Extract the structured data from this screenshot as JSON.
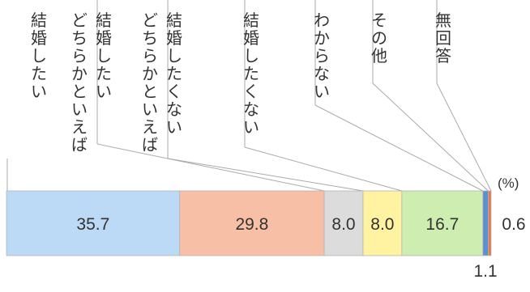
{
  "chart_data": {
    "type": "stacked-bar-100",
    "unit": "(%)",
    "categories": [
      "結婚したい",
      "どちらかといえば結婚したい",
      "どちらかといえば結婚したくない",
      "結婚したくない",
      "わからない",
      "その他",
      "無回答"
    ],
    "label_lines": [
      [
        "結婚したい"
      ],
      [
        "どちらかといえば",
        "結婚したい"
      ],
      [
        "どちらかといえば",
        "結婚したくない"
      ],
      [
        "結婚したくない"
      ],
      [
        "わからない"
      ],
      [
        "その他"
      ],
      [
        "無回答"
      ]
    ],
    "values": [
      35.7,
      29.8,
      8.0,
      8.0,
      16.7,
      1.1,
      0.6
    ],
    "value_labels": [
      "35.7",
      "29.8",
      "8.0",
      "8.0",
      "16.7",
      "1.1",
      "0.6"
    ],
    "colors": [
      "#bcd9f5",
      "#f7bfa5",
      "#dcdcdc",
      "#fff2a0",
      "#cdeeb0",
      "#5b8fd1",
      "#e07a4a"
    ]
  }
}
